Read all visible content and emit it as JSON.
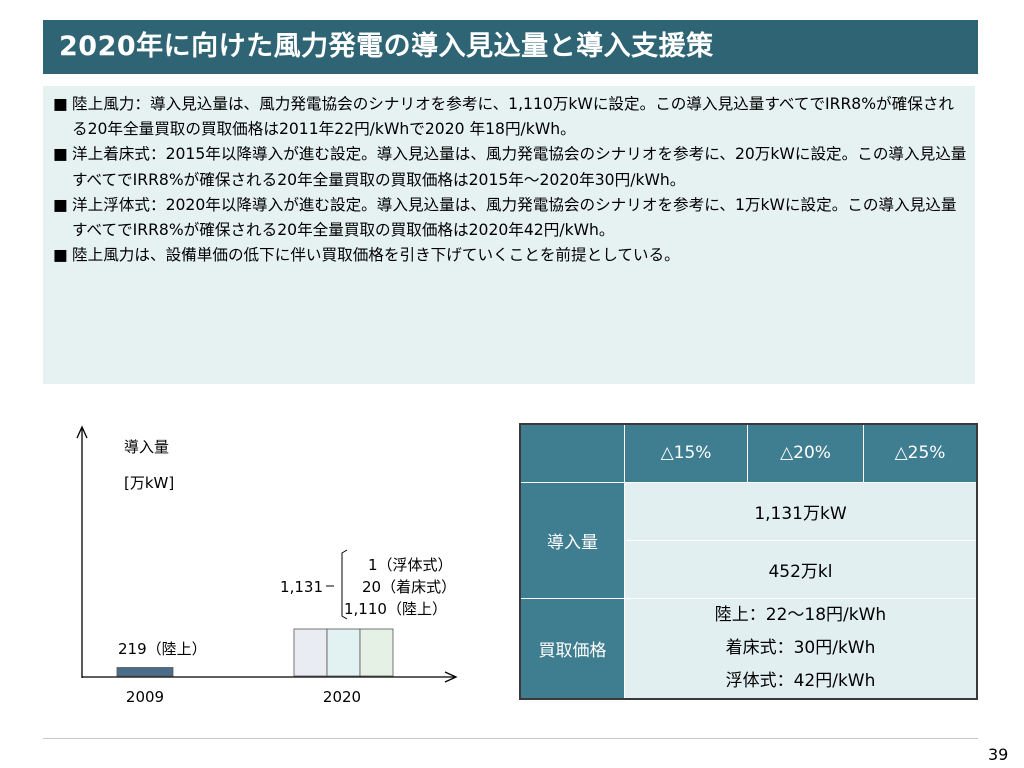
{
  "slide": {
    "title": "2020年に向けた風力発電の導入見込量と導入支援策",
    "page_number": "39"
  },
  "bullets": [
    {
      "mark": "■",
      "text": "陸上風力：導入見込量は、風力発電協会のシナリオを参考に、1,110万kWに設定。この導入見込量すべてでIRR8%が確保される20年全量買取の買取価格は2011年22円/kWhで2020 年18円/kWh。"
    },
    {
      "mark": "■",
      "text": "洋上着床式：2015年以降導入が進む設定。導入見込量は、風力発電協会のシナリオを参考に、20万kWに設定。この導入見込量すべてでIRR8%が確保される20年全量買取の買取価格は2015年～2020年30円/kWh。"
    },
    {
      "mark": "■",
      "text": "洋上浮体式：2020年以降導入が進む設定。導入見込量は、風力発電協会のシナリオを参考に、1万kWに設定。この導入見込量すべてでIRR8%が確保される20年全量買取の買取価格は2020年42円/kWh。"
    },
    {
      "mark": "■",
      "text": "陸上風力は、設備単価の低下に伴い買取価格を引き下げていくことを前提としている。"
    }
  ],
  "chart_data": {
    "type": "bar",
    "ylabel": "導入量",
    "yunit": "[万kW]",
    "categories": [
      "2009",
      "2020"
    ],
    "series": [
      {
        "name": "陸上",
        "values": [
          219,
          1110
        ],
        "color": "#4a6d8c"
      },
      {
        "name": "着床式",
        "values": [
          0,
          20
        ],
        "color": "#e2f1f1"
      },
      {
        "name": "浮体式",
        "values": [
          0,
          1
        ],
        "color": "#e6f1e6"
      }
    ],
    "annotations": {
      "bar2009": "219（陸上）",
      "total2020": "1,131",
      "floating": "1（浮体式）",
      "fixed": "20（着床式）",
      "onshore": "1,110（陸上）"
    },
    "colors": {
      "axis": "#000000",
      "bar2020_first": "#e9ecf3"
    }
  },
  "table": {
    "headers": [
      "△15%",
      "△20%",
      "△25%"
    ],
    "rows": [
      {
        "label": "導入量",
        "values": [
          "1,131万kW",
          "452万kl"
        ]
      },
      {
        "label": "買取価格",
        "values": [
          "陸上：22～18円/kWh",
          "着床式：30円/kWh",
          "浮体式：42円/kWh"
        ]
      }
    ],
    "colors": {
      "header_bg": "#3f7d90",
      "cell_bg": "#e2eff1"
    }
  }
}
